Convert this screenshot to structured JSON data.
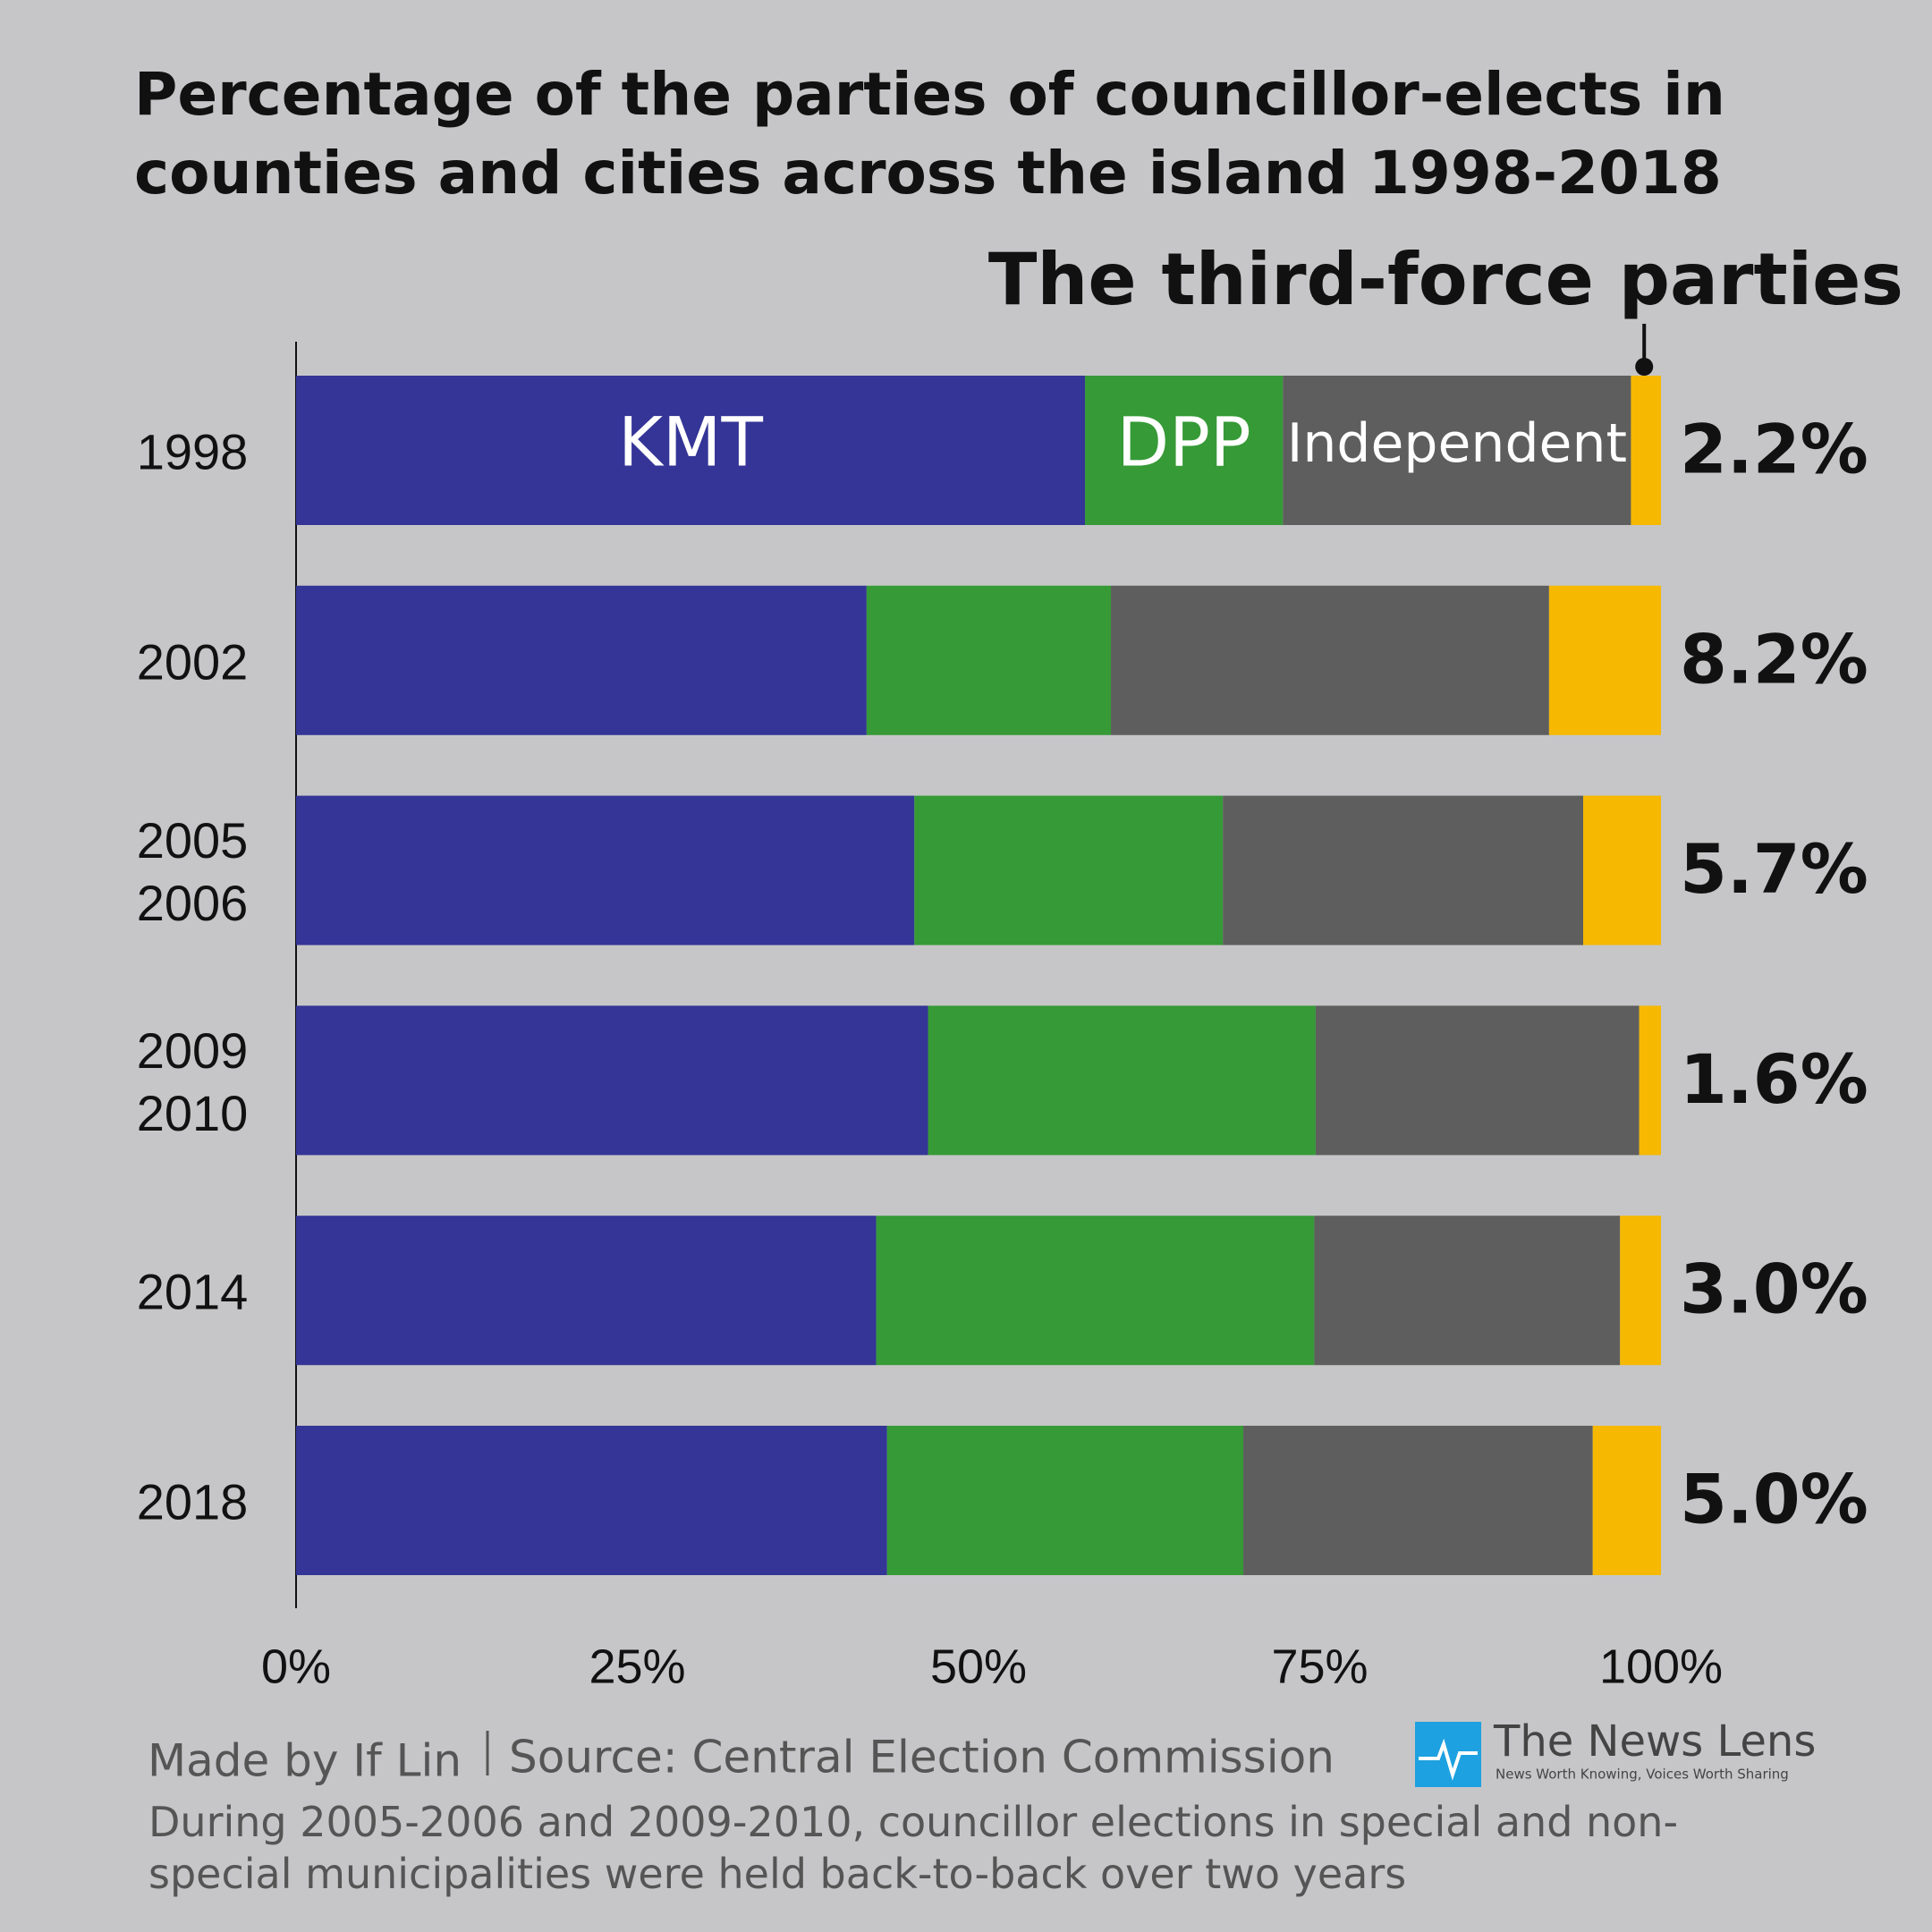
{
  "chart_data": {
    "type": "stacked-bar-horizontal",
    "title": "Percentage of the parties of councillor-elects in counties and cities across the island 1998-2018",
    "categories": [
      "1998",
      "2002",
      "2005\n2006",
      "2009\n2010",
      "2014",
      "2018"
    ],
    "series": [
      {
        "name": "KMT",
        "color": "#343596",
        "values": [
          57.8,
          41.8,
          45.3,
          46.3,
          42.5,
          43.3
        ]
      },
      {
        "name": "DPP",
        "color": "#369a37",
        "values": [
          14.5,
          17.9,
          22.6,
          28.4,
          32.1,
          26.1
        ]
      },
      {
        "name": "Independent",
        "color": "#5e5e5e",
        "values": [
          25.5,
          32.1,
          26.4,
          23.7,
          22.4,
          25.6
        ]
      },
      {
        "name": "The third-force parties",
        "color": "#f6b800",
        "values": [
          2.2,
          8.2,
          5.7,
          1.6,
          3.0,
          5.0
        ],
        "value_labels": [
          "2.2%",
          "8.2%",
          "5.7%",
          "1.6%",
          "3.0%",
          "5.0%"
        ]
      }
    ],
    "xlim": [
      0,
      100
    ],
    "xticks": [
      {
        "value": 0,
        "label": "0%"
      },
      {
        "value": 25,
        "label": "25%"
      },
      {
        "value": 50,
        "label": "50%"
      },
      {
        "value": 75,
        "label": "75%"
      },
      {
        "value": 100,
        "label": "100%"
      }
    ]
  },
  "credit": "Made by If Lin",
  "source": "Source: Central Election Commission",
  "note": "During 2005-2006 and 2009-2010, councillor elections in special and non-special municipalities were held back-to-back over two years",
  "logo": {
    "name": "The News Lens",
    "tagline": "News Worth Knowing, Voices Worth Sharing"
  }
}
